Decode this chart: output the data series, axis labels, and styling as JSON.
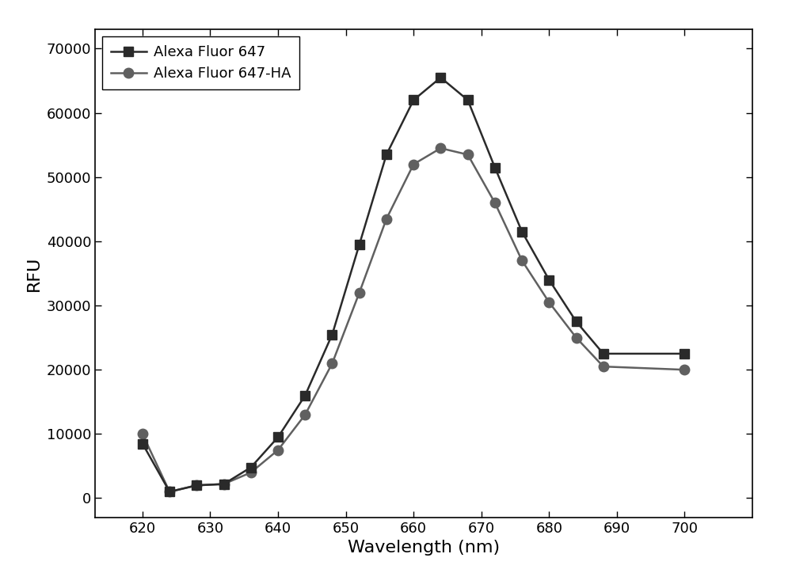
{
  "series1_label": "Alexa Fluor 647",
  "series2_label": "Alexa Fluor 647-HA",
  "series1_x": [
    620,
    624,
    628,
    632,
    636,
    640,
    644,
    648,
    652,
    656,
    660,
    664,
    668,
    672,
    676,
    680,
    684,
    688,
    700
  ],
  "series1_y": [
    8500,
    1000,
    2000,
    2200,
    4800,
    9500,
    16000,
    25500,
    39500,
    53500,
    62000,
    65500,
    62000,
    51500,
    41500,
    34000,
    27500,
    22500,
    22500
  ],
  "series2_x": [
    620,
    624,
    628,
    632,
    636,
    640,
    644,
    648,
    652,
    656,
    660,
    664,
    668,
    672,
    676,
    680,
    684,
    688,
    700
  ],
  "series2_y": [
    10000,
    1000,
    2000,
    2200,
    4000,
    7500,
    13000,
    21000,
    32000,
    43500,
    52000,
    54500,
    53500,
    46000,
    37000,
    30500,
    25000,
    20500,
    20000
  ],
  "color1": "#2a2a2a",
  "color2": "#606060",
  "marker1": "s",
  "marker2": "o",
  "markersize1": 8,
  "markersize2": 9,
  "linewidth": 1.8,
  "xlabel": "Wavelength (nm)",
  "ylabel": "RFU",
  "xlim": [
    613,
    710
  ],
  "ylim": [
    -3000,
    73000
  ],
  "xticks": [
    620,
    630,
    640,
    650,
    660,
    670,
    680,
    690,
    700
  ],
  "yticks": [
    0,
    10000,
    20000,
    30000,
    40000,
    50000,
    60000,
    70000
  ],
  "xlabel_fontsize": 16,
  "ylabel_fontsize": 16,
  "tick_fontsize": 13,
  "legend_fontsize": 13,
  "background_color": "#ffffff"
}
